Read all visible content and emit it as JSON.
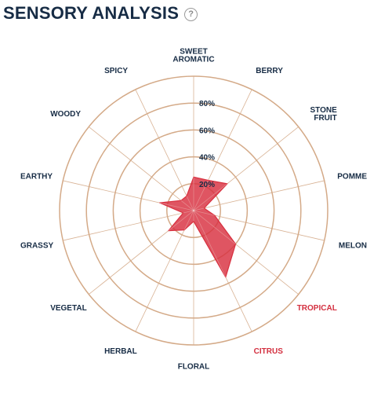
{
  "header": {
    "title": "SENSORY ANALYSIS",
    "help_glyph": "?"
  },
  "colors": {
    "ring": "#d4aa88",
    "label": "#172c45",
    "highlight": "#d32f3f",
    "fill": "#d8303f",
    "fill_opacity": 0.82
  },
  "chart_data": {
    "type": "radar",
    "title": "SENSORY ANALYSIS",
    "rmax": 100,
    "rings": [
      20,
      40,
      60,
      80,
      100
    ],
    "tick_labels": [
      "20%",
      "40%",
      "60%",
      "80%"
    ],
    "axes": [
      {
        "label": [
          "SWEET",
          "AROMATIC"
        ],
        "value": 25,
        "highlight": false
      },
      {
        "label": [
          "BERRY"
        ],
        "value": 25,
        "highlight": false
      },
      {
        "label": [
          "STONE",
          "FRUIT"
        ],
        "value": 32,
        "highlight": false
      },
      {
        "label": [
          "POMME"
        ],
        "value": 8,
        "highlight": false
      },
      {
        "label": [
          "MELON"
        ],
        "value": 16,
        "highlight": false
      },
      {
        "label": [
          "TROPICAL"
        ],
        "value": 40,
        "highlight": true
      },
      {
        "label": [
          "CITRUS"
        ],
        "value": 55,
        "highlight": true
      },
      {
        "label": [
          "FLORAL"
        ],
        "value": 8,
        "highlight": false
      },
      {
        "label": [
          "HERBAL"
        ],
        "value": 16,
        "highlight": false
      },
      {
        "label": [
          "VEGETAL"
        ],
        "value": 24,
        "highlight": false
      },
      {
        "label": [
          "GRASSY"
        ],
        "value": 8,
        "highlight": false
      },
      {
        "label": [
          "EARTHY"
        ],
        "value": 26,
        "highlight": false
      },
      {
        "label": [
          "WOODY"
        ],
        "value": 12,
        "highlight": false
      },
      {
        "label": [
          "SPICY"
        ],
        "value": 12,
        "highlight": false
      }
    ],
    "grid": true
  }
}
